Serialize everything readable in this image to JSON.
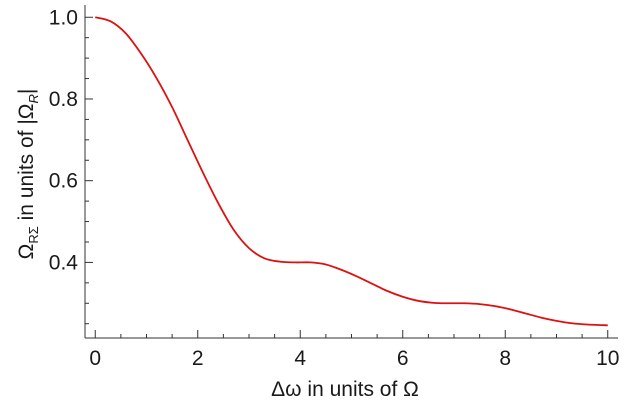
{
  "chart_data": {
    "type": "line",
    "title": "",
    "xlabel": "Δω in units of Ω",
    "ylabel": {
      "main": "Ω",
      "main_sub": "RΣ",
      "middle": " in units of ",
      "abs_open": "|",
      "symbol": "Ω",
      "symbol_sub": "R",
      "abs_close": "|"
    },
    "xlim": [
      -0.2,
      10.2
    ],
    "ylim": [
      0.215,
      1.03
    ],
    "x_ticks": [
      "0",
      "2",
      "4",
      "6",
      "8",
      "10"
    ],
    "x_tick_values": [
      0,
      2,
      4,
      6,
      8,
      10
    ],
    "y_ticks": [
      "0.4",
      "0.6",
      "0.8",
      "1.0"
    ],
    "y_tick_values": [
      0.4,
      0.6,
      0.8,
      1.0
    ],
    "grid": false,
    "colors": {
      "series": "#dd1111",
      "axes": "#333333"
    },
    "series": [
      {
        "x": [
          0,
          0.3,
          0.6,
          0.9,
          1.2,
          1.5,
          1.8,
          2.1,
          2.4,
          2.7,
          3.0,
          3.3,
          3.6,
          3.9,
          4.2,
          4.5,
          4.8,
          5.1,
          5.4,
          5.7,
          6.0,
          6.3,
          6.6,
          6.9,
          7.2,
          7.5,
          7.8,
          8.1,
          8.4,
          8.7,
          9.0,
          9.3,
          9.6,
          10.0
        ],
        "y": [
          1.0,
          0.99,
          0.96,
          0.91,
          0.85,
          0.78,
          0.7,
          0.62,
          0.545,
          0.48,
          0.435,
          0.41,
          0.402,
          0.4,
          0.4,
          0.395,
          0.382,
          0.366,
          0.348,
          0.33,
          0.316,
          0.306,
          0.301,
          0.3,
          0.3,
          0.298,
          0.293,
          0.285,
          0.275,
          0.265,
          0.257,
          0.251,
          0.248,
          0.246
        ]
      }
    ]
  }
}
